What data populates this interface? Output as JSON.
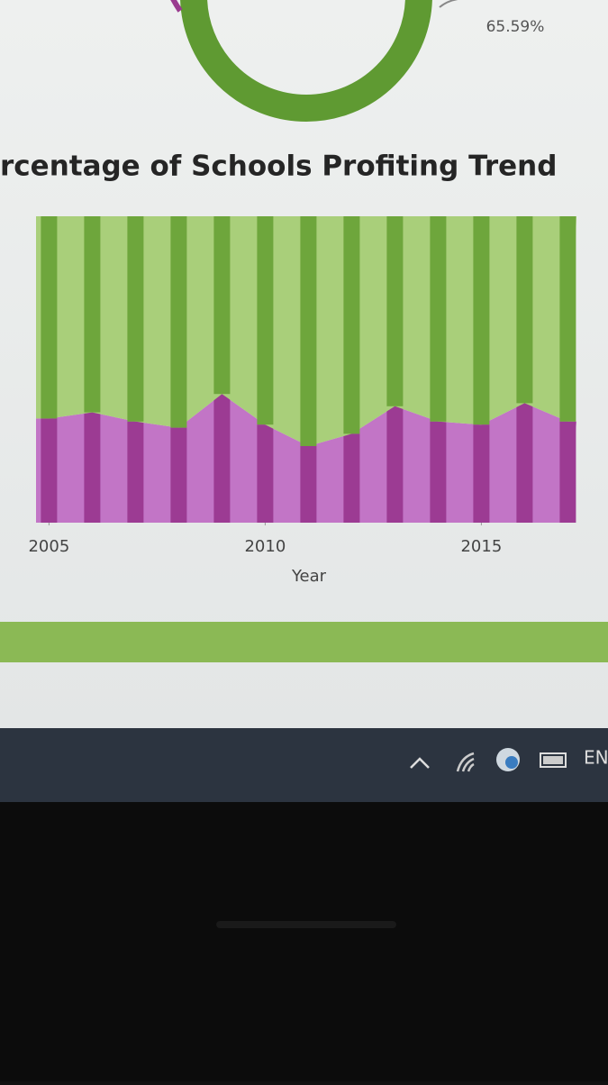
{
  "header": {
    "annotation": "65.59%"
  },
  "chart_data": {
    "type": "area",
    "stacked": true,
    "title": "rcentage of Schools Profiting Trend",
    "x_label": "Year",
    "x": [
      2005,
      2006,
      2007,
      2008,
      2009,
      2010,
      2011,
      2012,
      2013,
      2014,
      2015,
      2016,
      2017
    ],
    "series": [
      {
        "color": "#c275c6",
        "bar_color": "#9c3b93",
        "values": [
          34,
          36,
          33,
          31,
          42,
          32,
          25,
          29,
          38,
          33,
          32,
          39,
          33
        ]
      },
      {
        "color": "#a9cf7a",
        "bar_color": "#6ea63c",
        "values": [
          66,
          64,
          67,
          69,
          58,
          68,
          75,
          71,
          62,
          67,
          68,
          61,
          67
        ]
      }
    ],
    "xlim": [
      2004.7,
      2017.2
    ],
    "xticks": [
      2005,
      2010,
      2015
    ],
    "ylim": [
      0,
      100
    ]
  },
  "taskbar": {
    "language": "EN"
  }
}
